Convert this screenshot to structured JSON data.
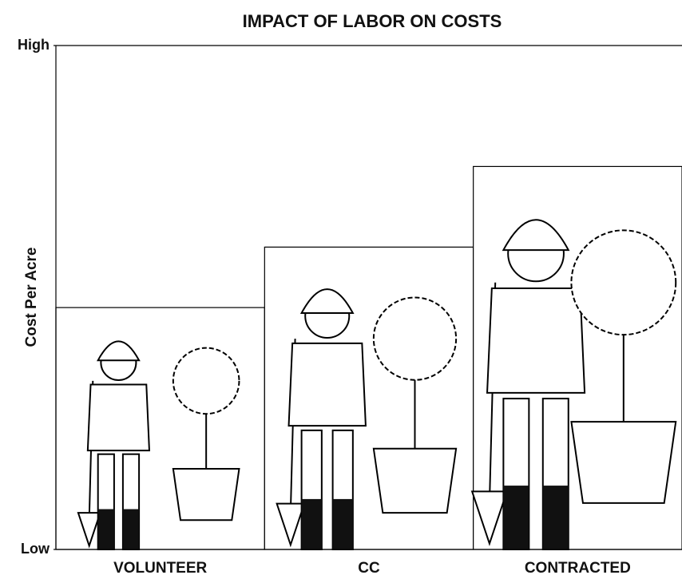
{
  "chart_data": {
    "type": "bar",
    "title": "IMPACT OF LABOR ON COSTS",
    "y_label": "Cost Per Acre",
    "categories": [
      "VOLUNTEER",
      "CC",
      "CONTRACTED"
    ],
    "values": [
      48,
      60,
      76
    ],
    "color": "#ffffff",
    "ylim": [
      0,
      100
    ],
    "yticks": [
      {
        "value": 0,
        "label": "Low"
      },
      {
        "value": 100,
        "label": "High"
      }
    ]
  }
}
